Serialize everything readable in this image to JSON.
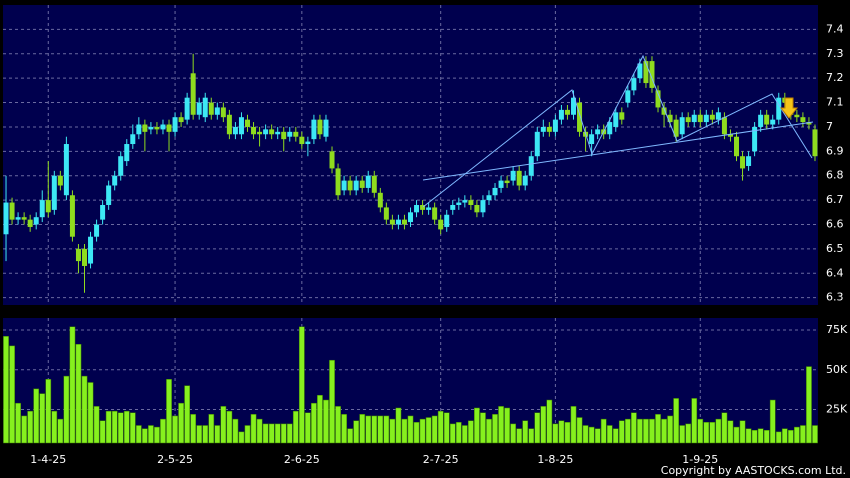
{
  "chart_data": [
    {
      "type": "candlestick",
      "up_color": "#3de8f5",
      "down_color": "#8fdc1e",
      "grid": true,
      "ylim": [
        6.27,
        7.5
      ],
      "yticks": [
        6.3,
        6.4,
        6.5,
        6.6,
        6.7,
        6.8,
        6.9,
        7,
        7.1,
        7.2,
        7.3,
        7.4
      ],
      "open": [
        6.56,
        6.69,
        6.62,
        6.63,
        6.62,
        6.6,
        6.63,
        6.7,
        6.66,
        6.8,
        6.72,
        6.72,
        6.5,
        6.5,
        6.44,
        6.55,
        6.62,
        6.68,
        6.76,
        6.8,
        6.86,
        6.93,
        6.97,
        7.01,
        6.99,
        7.0,
        6.99,
        7.01,
        6.98,
        7.04,
        7.03,
        7.22,
        7.05,
        7.04,
        7.1,
        7.05,
        7.08,
        7.05,
        6.97,
        6.97,
        7.03,
        7.0,
        6.98,
        6.97,
        6.99,
        6.97,
        6.98,
        6.96,
        6.98,
        6.96,
        6.93,
        6.95,
        7.03,
        6.96,
        6.9,
        6.83,
        6.74,
        6.78,
        6.74,
        6.78,
        6.75,
        6.8,
        6.73,
        6.67,
        6.62,
        6.6,
        6.62,
        6.61,
        6.65,
        6.68,
        6.66,
        6.67,
        6.62,
        6.59,
        6.66,
        6.68,
        6.69,
        6.7,
        6.68,
        6.65,
        6.7,
        6.72,
        6.75,
        6.78,
        6.78,
        6.82,
        6.76,
        6.8,
        6.88,
        6.98,
        7.0,
        6.98,
        7.03,
        7.07,
        7.05,
        7.1,
        6.98,
        6.93,
        6.97,
        6.99,
        6.97,
        7.0,
        7.06,
        7.1,
        7.15,
        7.2,
        7.27,
        7.27,
        7.15,
        7.08,
        7.05,
        7.03,
        6.97,
        7.04,
        7.02,
        7.05,
        7.02,
        7.05,
        7.03,
        7.04,
        6.97,
        6.96,
        6.88,
        6.84,
        6.9,
        7.0,
        7.05,
        7.01,
        7.03,
        7.12,
        7.1,
        7.05,
        7.04,
        7.02,
        6.99
      ],
      "high": [
        6.8,
        6.71,
        6.65,
        6.65,
        6.64,
        6.65,
        6.74,
        6.86,
        6.82,
        6.82,
        6.96,
        6.74,
        6.52,
        6.52,
        6.57,
        6.62,
        6.7,
        6.78,
        6.82,
        6.9,
        6.95,
        7.01,
        7.04,
        7.03,
        7.02,
        7.02,
        7.03,
        7.03,
        7.06,
        7.06,
        7.14,
        7.3,
        7.12,
        7.14,
        7.12,
        7.1,
        7.1,
        7.07,
        7.02,
        7.06,
        7.05,
        7.02,
        7.0,
        7.01,
        7.01,
        7.0,
        7.0,
        7.0,
        7.0,
        6.98,
        6.96,
        7.05,
        7.05,
        7.05,
        6.92,
        6.85,
        6.8,
        6.8,
        6.8,
        6.8,
        6.82,
        6.82,
        6.75,
        6.69,
        6.64,
        6.64,
        6.64,
        6.67,
        6.7,
        6.7,
        6.69,
        6.69,
        6.64,
        6.66,
        6.7,
        6.71,
        6.72,
        6.72,
        6.7,
        6.72,
        6.74,
        6.77,
        6.8,
        6.8,
        6.84,
        6.84,
        6.82,
        6.9,
        7.0,
        7.03,
        7.02,
        7.05,
        7.09,
        7.09,
        7.15,
        7.12,
        7.0,
        6.99,
        7.01,
        7.01,
        7.04,
        7.08,
        7.08,
        7.17,
        7.22,
        7.28,
        7.29,
        7.29,
        7.17,
        7.1,
        7.07,
        7.05,
        7.06,
        7.06,
        7.07,
        7.07,
        7.07,
        7.07,
        7.08,
        7.06,
        6.99,
        6.98,
        6.9,
        6.9,
        7.02,
        7.07,
        7.07,
        7.05,
        7.14,
        7.14,
        7.12,
        7.07,
        7.06,
        7.04,
        7.01
      ],
      "low": [
        6.45,
        6.6,
        6.6,
        6.6,
        6.57,
        6.58,
        6.61,
        6.63,
        6.64,
        6.74,
        6.7,
        6.53,
        6.4,
        6.32,
        6.42,
        6.53,
        6.6,
        6.66,
        6.74,
        6.78,
        6.84,
        6.91,
        6.95,
        6.9,
        6.97,
        6.97,
        6.97,
        6.9,
        6.96,
        7.0,
        7.01,
        7.03,
        7.03,
        7.02,
        7.03,
        7.03,
        7.02,
        6.95,
        6.95,
        6.95,
        6.98,
        6.95,
        6.92,
        6.95,
        6.95,
        6.95,
        6.9,
        6.94,
        6.94,
        6.91,
        6.88,
        6.93,
        6.95,
        6.94,
        6.81,
        6.7,
        6.72,
        6.72,
        6.72,
        6.73,
        6.73,
        6.71,
        6.65,
        6.6,
        6.58,
        6.58,
        6.58,
        6.59,
        6.63,
        6.64,
        6.64,
        6.6,
        6.56,
        6.57,
        6.64,
        6.66,
        6.67,
        6.66,
        6.63,
        6.63,
        6.68,
        6.7,
        6.73,
        6.75,
        6.76,
        6.74,
        6.74,
        6.78,
        6.86,
        6.96,
        6.96,
        6.96,
        7.01,
        7.03,
        7.03,
        6.96,
        6.9,
        6.88,
        6.95,
        6.95,
        6.95,
        6.98,
        7.01,
        7.08,
        7.13,
        7.18,
        7.16,
        7.14,
        7.06,
        7.0,
        7.0,
        6.94,
        6.95,
        7.0,
        7.0,
        7.0,
        7.0,
        7.01,
        7.01,
        6.95,
        6.94,
        6.86,
        6.78,
        6.82,
        6.88,
        6.98,
        6.99,
        6.99,
        7.01,
        7.08,
        7.03,
        7.02,
        7.0,
        6.99,
        6.86
      ],
      "close": [
        6.69,
        6.62,
        6.63,
        6.62,
        6.59,
        6.63,
        6.7,
        6.65,
        6.8,
        6.76,
        6.93,
        6.55,
        6.45,
        6.43,
        6.55,
        6.6,
        6.68,
        6.76,
        6.8,
        6.88,
        6.93,
        6.97,
        7.01,
        6.98,
        7.0,
        6.99,
        7.01,
        6.98,
        7.04,
        7.02,
        7.12,
        7.05,
        7.1,
        7.12,
        7.05,
        7.08,
        7.04,
        6.97,
        7.0,
        7.04,
        7.0,
        6.97,
        6.97,
        6.99,
        6.97,
        6.98,
        6.95,
        6.98,
        6.96,
        6.93,
        6.94,
        7.03,
        6.97,
        7.03,
        6.83,
        6.72,
        6.78,
        6.74,
        6.78,
        6.75,
        6.8,
        6.73,
        6.67,
        6.62,
        6.6,
        6.62,
        6.6,
        6.65,
        6.68,
        6.66,
        6.67,
        6.62,
        6.58,
        6.64,
        6.68,
        6.69,
        6.7,
        6.68,
        6.65,
        6.7,
        6.72,
        6.75,
        6.78,
        6.77,
        6.82,
        6.76,
        6.8,
        6.88,
        6.98,
        7.0,
        6.98,
        7.03,
        7.07,
        7.05,
        7.12,
        6.98,
        6.96,
        6.97,
        6.99,
        6.97,
        7.02,
        7.06,
        7.03,
        7.15,
        7.2,
        7.26,
        7.18,
        7.16,
        7.08,
        7.05,
        7.02,
        6.96,
        7.04,
        7.02,
        7.05,
        7.02,
        7.05,
        7.03,
        7.06,
        6.97,
        6.96,
        6.88,
        6.83,
        6.88,
        7.0,
        7.05,
        7.01,
        7.03,
        7.12,
        7.1,
        7.05,
        7.04,
        7.02,
        7.01,
        6.88
      ]
    },
    {
      "type": "bar",
      "color": "#86f01e",
      "grid": true,
      "ylim": [
        4000,
        82500
      ],
      "yticks": [
        {
          "value": 25000,
          "label": "25K"
        },
        {
          "value": 50000,
          "label": "50K"
        },
        {
          "value": 75000,
          "label": "75K"
        }
      ],
      "categories": [
        null,
        null,
        null,
        null,
        null,
        null,
        null,
        "1-4-25",
        null,
        null,
        null,
        null,
        null,
        null,
        null,
        null,
        null,
        null,
        null,
        null,
        null,
        null,
        null,
        null,
        null,
        null,
        null,
        null,
        "2-5-25",
        null,
        null,
        null,
        null,
        null,
        null,
        null,
        null,
        null,
        null,
        null,
        null,
        null,
        null,
        null,
        null,
        null,
        null,
        null,
        null,
        "2-6-25",
        null,
        null,
        null,
        null,
        null,
        null,
        null,
        null,
        null,
        null,
        null,
        null,
        null,
        null,
        null,
        null,
        null,
        null,
        null,
        null,
        null,
        null,
        "2-7-25",
        null,
        null,
        null,
        null,
        null,
        null,
        null,
        null,
        null,
        null,
        null,
        null,
        null,
        null,
        null,
        null,
        null,
        null,
        "1-8-25",
        null,
        null,
        null,
        null,
        null,
        null,
        null,
        null,
        null,
        null,
        null,
        null,
        null,
        null,
        null,
        null,
        null,
        null,
        null,
        null,
        null,
        null,
        null,
        "1-9-25",
        null,
        null,
        null,
        null,
        null,
        null,
        null,
        null,
        null,
        null,
        null,
        null,
        null,
        null,
        null,
        null,
        null,
        null,
        null
      ],
      "values": [
        71000,
        65000,
        29000,
        21000,
        24000,
        38000,
        35000,
        44000,
        24000,
        19000,
        46000,
        77000,
        66000,
        46000,
        42000,
        27000,
        18000,
        24000,
        24000,
        23000,
        24000,
        23000,
        15000,
        13000,
        15000,
        14000,
        19000,
        44000,
        21000,
        29000,
        40000,
        22000,
        15000,
        15000,
        22000,
        15000,
        27000,
        24000,
        19000,
        11000,
        15000,
        22000,
        19000,
        16000,
        16000,
        16000,
        16000,
        16000,
        24000,
        77000,
        23000,
        29000,
        34000,
        31000,
        56000,
        27000,
        22000,
        13000,
        18000,
        22000,
        21000,
        21000,
        21000,
        21000,
        19000,
        26000,
        19000,
        21000,
        17000,
        19000,
        20000,
        21000,
        24000,
        23000,
        16000,
        17000,
        15000,
        18000,
        26000,
        23000,
        19000,
        22000,
        27000,
        26000,
        16000,
        13000,
        18000,
        13000,
        23000,
        27000,
        31000,
        16000,
        18000,
        17000,
        27000,
        20000,
        15000,
        14000,
        13000,
        19000,
        15000,
        13000,
        18000,
        19000,
        23000,
        19000,
        19000,
        19000,
        22000,
        19000,
        21000,
        32000,
        15000,
        16000,
        32000,
        19000,
        17000,
        17000,
        19000,
        23000,
        18000,
        14000,
        18000,
        13000,
        12000,
        13000,
        12000,
        31000,
        11000,
        13000,
        12000,
        14000,
        15000,
        52000,
        15000
      ]
    }
  ],
  "copyright": "Copyright by AASTOCKS.com Ltd."
}
